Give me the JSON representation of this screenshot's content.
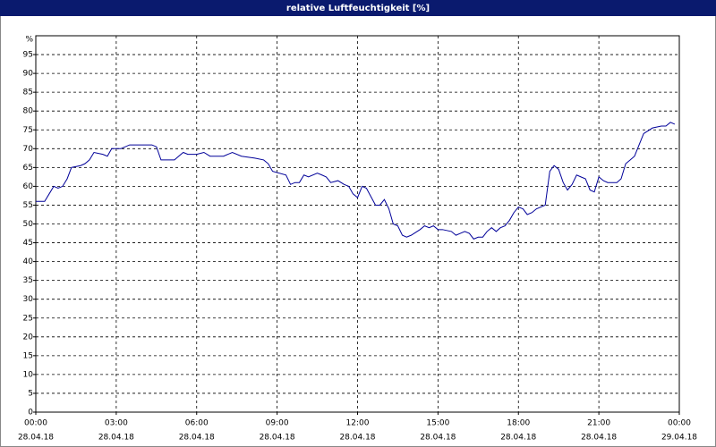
{
  "chart_data": {
    "type": "line",
    "title": "relative Luftfeuchtigkeit [%]",
    "y_unit": "%",
    "xlim": [
      0,
      24
    ],
    "ylim": [
      0,
      100
    ],
    "xticks": [
      {
        "value": 0,
        "label": "00:00"
      },
      {
        "value": 3,
        "label": "03:00"
      },
      {
        "value": 6,
        "label": "06:00"
      },
      {
        "value": 9,
        "label": "09:00"
      },
      {
        "value": 12,
        "label": "12:00"
      },
      {
        "value": 15,
        "label": "15:00"
      },
      {
        "value": 18,
        "label": "18:00"
      },
      {
        "value": 21,
        "label": "21:00"
      },
      {
        "value": 24,
        "label": "00:00"
      }
    ],
    "xtick_dates": [
      "28.04.18",
      "28.04.18",
      "28.04.18",
      "28.04.18",
      "28.04.18",
      "28.04.18",
      "28.04.18",
      "28.04.18",
      "29.04.18"
    ],
    "yticks": [
      0,
      5,
      10,
      15,
      20,
      25,
      30,
      35,
      40,
      45,
      50,
      55,
      60,
      65,
      70,
      75,
      80,
      85,
      90,
      95
    ],
    "grid": true,
    "x": [
      0,
      0.33,
      0.5,
      0.67,
      0.83,
      1,
      1.17,
      1.33,
      1.67,
      1.83,
      2,
      2.17,
      2.5,
      2.67,
      2.83,
      3.17,
      3.5,
      4.33,
      4.5,
      4.67,
      5,
      5.17,
      5.33,
      5.5,
      5.67,
      6,
      6.27,
      6.5,
      7,
      7.33,
      7.67,
      8.17,
      8.5,
      8.67,
      8.83,
      9.33,
      9.5,
      9.67,
      9.83,
      10,
      10.17,
      10.5,
      10.67,
      10.83,
      11,
      11.27,
      11.5,
      11.67,
      11.83,
      12,
      12.17,
      12.33,
      12.67,
      12.83,
      13,
      13.17,
      13.33,
      13.5,
      13.67,
      13.83,
      14,
      14.33,
      14.5,
      14.67,
      14.83,
      15,
      15.17,
      15.5,
      15.67,
      15.83,
      16,
      16.17,
      16.33,
      16.5,
      16.67,
      16.83,
      17,
      17.17,
      17.33,
      17.5,
      17.67,
      17.83,
      18,
      18.17,
      18.33,
      18.5,
      18.67,
      19,
      19.17,
      19.33,
      19.5,
      19.67,
      19.83,
      20,
      20.17,
      20.33,
      20.5,
      20.67,
      20.83,
      21,
      21.17,
      21.33,
      21.67,
      21.83,
      22,
      22.17,
      22.33,
      22.5,
      22.67,
      23,
      23.33,
      23.5,
      23.67,
      23.83
    ],
    "series": [
      {
        "color": "#000099",
        "values": [
          56,
          56,
          58,
          60,
          59.5,
          60,
          62,
          65,
          65.5,
          66,
          67,
          69,
          68.5,
          68,
          70,
          70,
          71,
          71,
          70.5,
          67,
          67,
          67,
          68,
          69,
          68.5,
          68.5,
          69,
          68,
          68,
          69,
          68,
          67.5,
          67,
          66,
          64,
          63,
          60.5,
          61,
          61,
          63,
          62.5,
          63.5,
          63,
          62.5,
          61,
          61.5,
          60.5,
          60,
          58,
          57,
          60,
          59.5,
          55,
          55,
          56.5,
          54,
          50,
          49.5,
          47,
          46.5,
          47,
          48.5,
          49.5,
          49,
          49.5,
          48.5,
          48.5,
          48,
          47,
          47.5,
          48,
          47.5,
          46,
          46.5,
          46.5,
          48,
          49,
          48,
          49,
          49.5,
          51,
          53,
          54.5,
          54,
          52.5,
          53,
          54,
          55,
          64,
          65.5,
          64.5,
          61,
          59,
          60.5,
          63,
          62.5,
          62,
          59,
          58.5,
          62.5,
          61.5,
          61,
          61,
          62,
          66,
          67,
          68,
          71,
          74,
          75.5,
          76,
          76,
          77,
          76.5
        ]
      }
    ]
  }
}
